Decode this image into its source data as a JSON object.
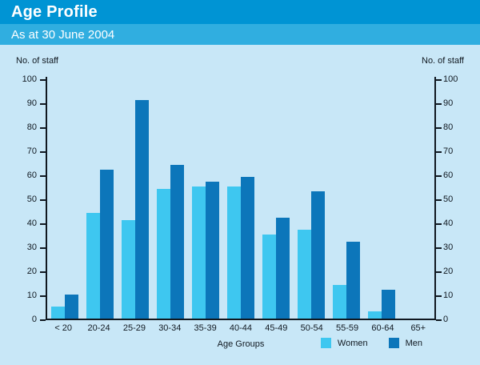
{
  "header": {
    "title": "Age Profile",
    "subtitle": "As at 30 June 2004"
  },
  "colors": {
    "page_background": "#c8e7f7",
    "title_band": "#0094d4",
    "subtitle_band": "#30aee0",
    "women_bar": "#3ec7f0",
    "men_bar": "#0c76ba",
    "axis": "#101820"
  },
  "chart_data": {
    "type": "bar",
    "title": "Age Profile",
    "subtitle": "As at 30 June 2004",
    "categories": [
      "< 20",
      "20-24",
      "25-29",
      "30-34",
      "35-39",
      "40-44",
      "45-49",
      "50-54",
      "55-59",
      "60-64",
      "65+"
    ],
    "series": [
      {
        "name": "Women",
        "color": "#3ec7f0",
        "values": [
          5,
          44,
          41,
          54,
          55,
          55,
          35,
          37,
          14,
          3,
          0
        ]
      },
      {
        "name": "Men",
        "color": "#0c76ba",
        "values": [
          10,
          62,
          91,
          64,
          57,
          59,
          42,
          53,
          32,
          12,
          0
        ]
      }
    ],
    "xlabel": "Age Groups",
    "ylabel_left": "No. of staff",
    "ylabel_right": "No. of staff",
    "ylim": [
      0,
      100
    ],
    "yticks": [
      0,
      10,
      20,
      30,
      40,
      50,
      60,
      70,
      80,
      90,
      100
    ],
    "grid": false,
    "legend_position": "bottom-right"
  }
}
